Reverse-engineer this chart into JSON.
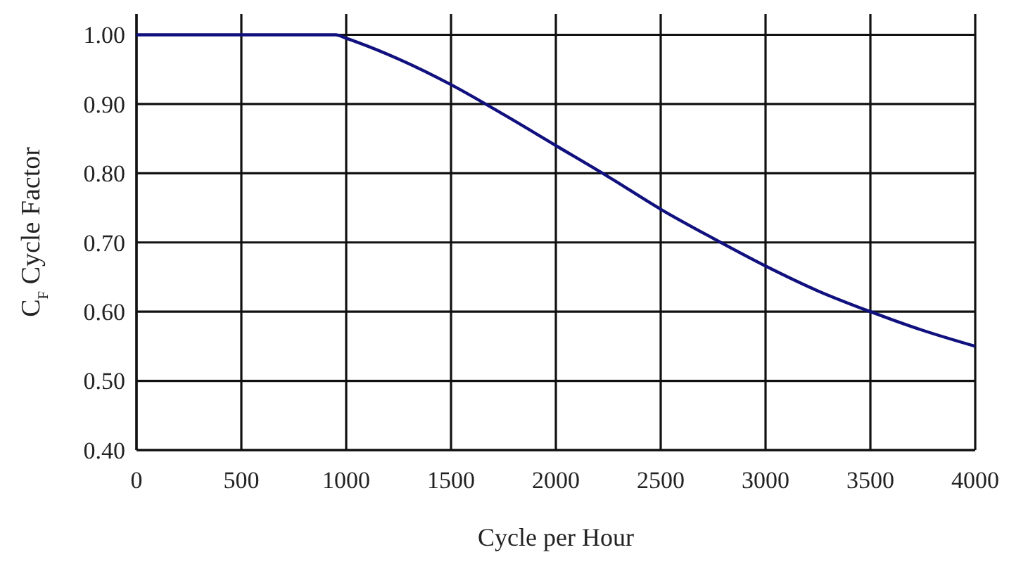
{
  "chart_data": {
    "type": "line",
    "xlabel": "Cycle per Hour",
    "ylabel": "C$_{F}$ Cycle Factor",
    "x": [
      0,
      500,
      900,
      950,
      1000,
      1250,
      1500,
      1750,
      2000,
      2250,
      2500,
      2750,
      3000,
      3250,
      3500,
      3750,
      4000
    ],
    "series": [
      {
        "color": "#10107f",
        "values": [
          1.0,
          1.0,
          1.0,
          1.0,
          0.995,
          0.965,
          0.928,
          0.885,
          0.84,
          0.795,
          0.748,
          0.706,
          0.666,
          0.63,
          0.6,
          0.573,
          0.55
        ]
      }
    ],
    "xlim": [
      0,
      4000
    ],
    "xticks": [
      0,
      500,
      1000,
      1500,
      2000,
      2500,
      3000,
      3500,
      4000
    ],
    "ylim": [
      0.4,
      1.03
    ],
    "yticks": [
      {
        "value": 0.4,
        "label": "0.40"
      },
      {
        "value": 0.5,
        "label": "0.50"
      },
      {
        "value": 0.6,
        "label": "0.60"
      },
      {
        "value": 0.7,
        "label": "0.70"
      },
      {
        "value": 0.8,
        "label": "0.80"
      },
      {
        "value": 0.9,
        "label": "0.90"
      },
      {
        "value": 1.0,
        "label": "1.00"
      }
    ],
    "grid": true,
    "line_style": "solid",
    "marker": "none"
  }
}
